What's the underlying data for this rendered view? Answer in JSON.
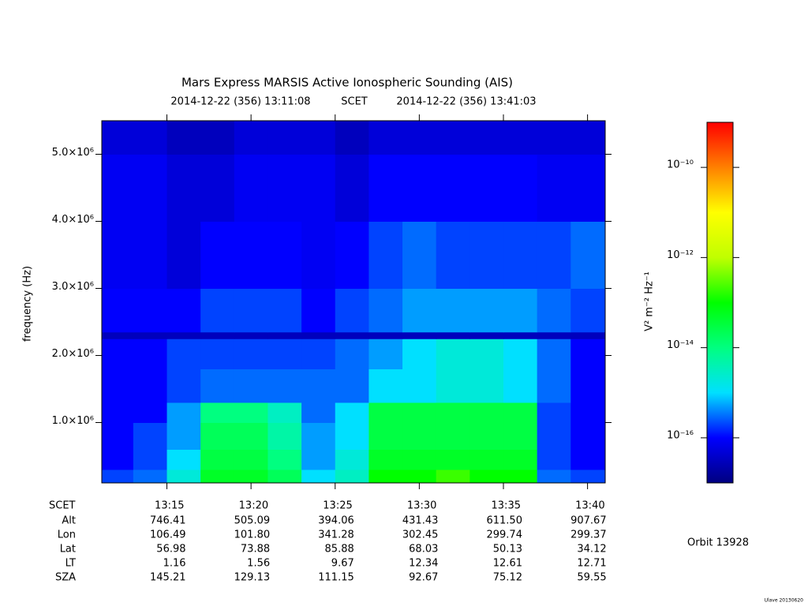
{
  "chart_data": {
    "type": "heatmap",
    "title": "Mars Express MARSIS Active Ionospheric Sounding (AIS)",
    "time_start": "2014-12-22 (356) 13:11:08",
    "time_system": "SCET",
    "time_end": "2014-12-22 (356) 13:41:03",
    "y_label": "frequency (Hz)",
    "xlim": [
      791.13,
      821.05
    ],
    "xticks": [
      {
        "value": 795,
        "label": "13:15"
      },
      {
        "value": 800,
        "label": "13:20"
      },
      {
        "value": 805,
        "label": "13:25"
      },
      {
        "value": 810,
        "label": "13:30"
      },
      {
        "value": 815,
        "label": "13:35"
      },
      {
        "value": 820,
        "label": "13:40"
      }
    ],
    "ylim": [
      100000,
      5500000
    ],
    "yticks": [
      {
        "value": 1000000,
        "label": "1.0×10⁶"
      },
      {
        "value": 2000000,
        "label": "2.0×10⁶"
      },
      {
        "value": 3000000,
        "label": "3.0×10⁶"
      },
      {
        "value": 4000000,
        "label": "4.0×10⁶"
      },
      {
        "value": 5000000,
        "label": "5.0×10⁶"
      }
    ],
    "x_bins": [
      791.13,
      793,
      795,
      797,
      799,
      801,
      803,
      805,
      807,
      809,
      811,
      813,
      815,
      817,
      819,
      821.05
    ],
    "y_bins": [
      100000,
      300000,
      600000,
      1000000,
      1300000,
      1800000,
      2250000,
      2350000,
      3000000,
      4000000,
      5000000,
      5500000
    ],
    "z": [
      [
        2e-16,
        3e-16,
        2e-15,
        5e-14,
        5e-14,
        2e-14,
        1e-15,
        3e-15,
        1e-13,
        1e-13,
        2e-13,
        1e-13,
        1e-13,
        3e-16,
        2e-16
      ],
      [
        1e-16,
        2e-16,
        1e-15,
        3e-14,
        3e-14,
        1e-14,
        5e-16,
        2e-15,
        5e-14,
        5e-14,
        5e-14,
        5e-14,
        5e-14,
        2e-16,
        1e-16
      ],
      [
        1e-16,
        2e-16,
        5e-16,
        2e-14,
        2e-14,
        5e-15,
        5e-16,
        1e-15,
        3e-14,
        3e-14,
        3e-14,
        3e-14,
        3e-14,
        2e-16,
        1e-16
      ],
      [
        1e-16,
        1e-16,
        5e-16,
        1e-14,
        1e-14,
        3e-15,
        3e-16,
        1e-15,
        3e-14,
        3e-14,
        3e-14,
        3e-14,
        3e-14,
        2e-16,
        1e-16
      ],
      [
        1e-16,
        1e-16,
        2e-16,
        3e-16,
        3e-16,
        3e-16,
        3e-16,
        3e-16,
        1e-15,
        1e-15,
        2e-15,
        2e-15,
        1e-15,
        3e-16,
        1e-16
      ],
      [
        1e-16,
        1e-16,
        2e-16,
        2e-16,
        2e-16,
        2e-16,
        2e-16,
        3e-16,
        5e-16,
        1e-15,
        2e-15,
        2e-15,
        1e-15,
        3e-16,
        1e-16
      ],
      [
        3e-17,
        3e-17,
        3e-17,
        3e-17,
        3e-17,
        3e-17,
        3e-17,
        3e-17,
        3e-17,
        3e-17,
        3e-17,
        3e-17,
        3e-17,
        3e-17,
        3e-17
      ],
      [
        1e-16,
        1e-16,
        1e-16,
        2e-16,
        2e-16,
        2e-16,
        1e-16,
        2e-16,
        3e-16,
        5e-16,
        5e-16,
        5e-16,
        5e-16,
        3e-16,
        2e-16
      ],
      [
        8e-17,
        8e-17,
        5e-17,
        1e-16,
        1e-16,
        1e-16,
        8e-17,
        1e-16,
        2e-16,
        3e-16,
        2e-16,
        2e-16,
        2e-16,
        2e-16,
        3e-16
      ],
      [
        8e-17,
        8e-17,
        5e-17,
        5e-17,
        8e-17,
        8e-17,
        8e-17,
        5e-17,
        1e-16,
        1e-16,
        1e-16,
        1e-16,
        1e-16,
        8e-17,
        8e-17
      ],
      [
        5e-17,
        5e-17,
        3e-17,
        3e-17,
        5e-17,
        5e-17,
        5e-17,
        3e-17,
        5e-17,
        5e-17,
        5e-17,
        5e-17,
        5e-17,
        5e-17,
        5e-17
      ]
    ],
    "colorbar": {
      "label": "V² m⁻² Hz⁻¹",
      "log": true,
      "zlim": [
        1e-17,
        1e-09
      ],
      "zticks": [
        {
          "value": 1e-10,
          "label": "10⁻¹⁰"
        },
        {
          "value": 1e-12,
          "label": "10⁻¹²"
        },
        {
          "value": 1e-14,
          "label": "10⁻¹⁴"
        },
        {
          "value": 1e-16,
          "label": "10⁻¹⁶"
        }
      ],
      "colormap": [
        "#000080",
        "#0000ff",
        "#00e0ff",
        "#00ff80",
        "#00ff00",
        "#c0ff00",
        "#ffff00",
        "#ff8000",
        "#ff0000"
      ]
    },
    "ephemeris": {
      "time_label": "SCET",
      "labels": [
        "Alt",
        "Lon",
        "Lat",
        "LT",
        "SZA"
      ],
      "rows": [
        [
          "746.41",
          "505.09",
          "394.06",
          "431.43",
          "611.50",
          "907.67"
        ],
        [
          "106.49",
          "101.80",
          "341.28",
          "302.45",
          "299.74",
          "299.37"
        ],
        [
          "56.98",
          "73.88",
          "85.88",
          "68.03",
          "50.13",
          "34.12"
        ],
        [
          "1.16",
          "1.56",
          "9.67",
          "12.34",
          "12.61",
          "12.71"
        ],
        [
          "145.21",
          "129.13",
          "111.15",
          "92.67",
          "75.12",
          "59.55"
        ]
      ]
    },
    "orbit": "Orbit 13928",
    "footnote": "Ulave 20130620"
  }
}
